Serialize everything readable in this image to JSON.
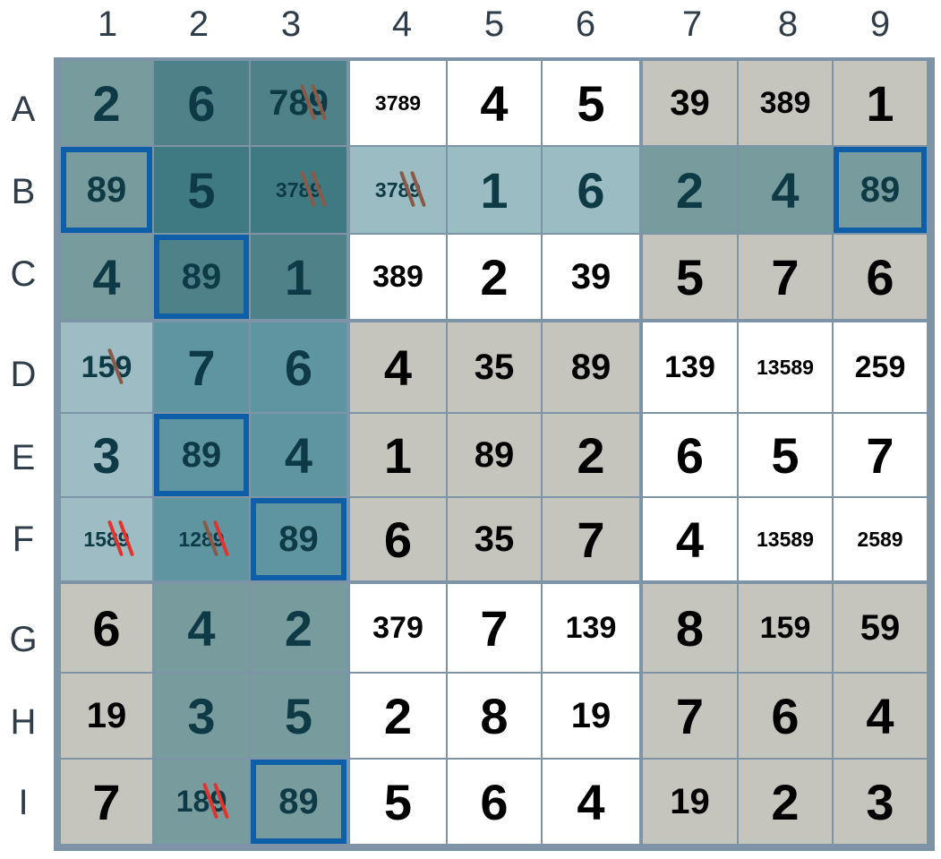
{
  "columns": [
    "1",
    "2",
    "3",
    "4",
    "5",
    "6",
    "7",
    "8",
    "9"
  ],
  "rows": [
    "A",
    "B",
    "C",
    "D",
    "E",
    "F",
    "G",
    "H",
    "I"
  ],
  "colors": {
    "white": "#ffffff",
    "gray": "#c5c5bd",
    "teal_dark": "#4f8288",
    "teal_mid": "#5e95a0",
    "teal_light": "#9dbcc4",
    "teal_gray": "#789b9d",
    "teal_strong": "#3f7a82",
    "row_light": "#9bbcc3",
    "outline_blue": "#0f5fa8",
    "strike_red": "#e0342c",
    "strike_brown": "#8a5a48"
  },
  "board": [
    [
      {
        "v": "2",
        "t": "given",
        "bg": "teal_gray"
      },
      {
        "v": "6",
        "t": "given",
        "bg": "teal_dark"
      },
      {
        "v": "789",
        "t": "cand",
        "bg": "teal_dark",
        "strikes": [
          {
            "color": "strike_brown",
            "n": 2
          }
        ]
      },
      {
        "v": "3789",
        "t": "cand",
        "bg": "white",
        "size": "micro"
      },
      {
        "v": "4",
        "t": "given",
        "bg": "white"
      },
      {
        "v": "5",
        "t": "given",
        "bg": "white"
      },
      {
        "v": "39",
        "t": "cand",
        "bg": "gray"
      },
      {
        "v": "389",
        "t": "cand",
        "bg": "gray",
        "size": "small"
      },
      {
        "v": "1",
        "t": "given",
        "bg": "gray"
      }
    ],
    [
      {
        "v": "89",
        "t": "cand",
        "bg": "teal_gray",
        "outlined": true
      },
      {
        "v": "5",
        "t": "given",
        "bg": "teal_strong"
      },
      {
        "v": "3789",
        "t": "cand",
        "bg": "teal_strong",
        "size": "micro",
        "strikes": [
          {
            "color": "strike_brown",
            "n": 2
          }
        ]
      },
      {
        "v": "3789",
        "t": "cand",
        "bg": "row_light",
        "size": "micro",
        "strikes": [
          {
            "color": "strike_brown",
            "n": 2
          }
        ]
      },
      {
        "v": "1",
        "t": "given",
        "bg": "row_light"
      },
      {
        "v": "6",
        "t": "given",
        "bg": "row_light"
      },
      {
        "v": "2",
        "t": "given",
        "bg": "teal_gray"
      },
      {
        "v": "4",
        "t": "given",
        "bg": "teal_gray"
      },
      {
        "v": "89",
        "t": "cand",
        "bg": "teal_gray",
        "outlined": true
      }
    ],
    [
      {
        "v": "4",
        "t": "given",
        "bg": "teal_gray"
      },
      {
        "v": "89",
        "t": "cand",
        "bg": "teal_dark",
        "outlined": true
      },
      {
        "v": "1",
        "t": "given",
        "bg": "teal_dark"
      },
      {
        "v": "389",
        "t": "cand",
        "bg": "white",
        "size": "small"
      },
      {
        "v": "2",
        "t": "given",
        "bg": "white"
      },
      {
        "v": "39",
        "t": "cand",
        "bg": "white"
      },
      {
        "v": "5",
        "t": "given",
        "bg": "gray"
      },
      {
        "v": "7",
        "t": "given",
        "bg": "gray"
      },
      {
        "v": "6",
        "t": "given",
        "bg": "gray"
      }
    ],
    [
      {
        "v": "159",
        "t": "cand",
        "bg": "teal_light",
        "size": "small",
        "strikes": [
          {
            "color": "strike_brown",
            "n": 1
          }
        ]
      },
      {
        "v": "7",
        "t": "given",
        "bg": "teal_mid"
      },
      {
        "v": "6",
        "t": "given",
        "bg": "teal_mid"
      },
      {
        "v": "4",
        "t": "given",
        "bg": "gray"
      },
      {
        "v": "35",
        "t": "cand",
        "bg": "gray"
      },
      {
        "v": "89",
        "t": "cand",
        "bg": "gray"
      },
      {
        "v": "139",
        "t": "cand",
        "bg": "white",
        "size": "small"
      },
      {
        "v": "13589",
        "t": "cand",
        "bg": "white",
        "size": "micro"
      },
      {
        "v": "259",
        "t": "cand",
        "bg": "white",
        "size": "small"
      }
    ],
    [
      {
        "v": "3",
        "t": "given",
        "bg": "teal_light"
      },
      {
        "v": "89",
        "t": "cand",
        "bg": "teal_mid",
        "outlined": true
      },
      {
        "v": "4",
        "t": "given",
        "bg": "teal_mid"
      },
      {
        "v": "1",
        "t": "given",
        "bg": "gray"
      },
      {
        "v": "89",
        "t": "cand",
        "bg": "gray"
      },
      {
        "v": "2",
        "t": "given",
        "bg": "gray"
      },
      {
        "v": "6",
        "t": "given",
        "bg": "white"
      },
      {
        "v": "5",
        "t": "given",
        "bg": "white"
      },
      {
        "v": "7",
        "t": "given",
        "bg": "white"
      }
    ],
    [
      {
        "v": "1589",
        "t": "cand",
        "bg": "teal_light",
        "size": "micro",
        "strikes": [
          {
            "color": "strike_red",
            "n": 2
          }
        ]
      },
      {
        "v": "1289",
        "t": "cand",
        "bg": "teal_mid",
        "size": "micro",
        "strikes": [
          {
            "color": "strike_brown",
            "n": 1
          },
          {
            "color": "strike_red",
            "n": 1
          }
        ]
      },
      {
        "v": "89",
        "t": "cand",
        "bg": "teal_mid",
        "outlined": true
      },
      {
        "v": "6",
        "t": "given",
        "bg": "gray"
      },
      {
        "v": "35",
        "t": "cand",
        "bg": "gray"
      },
      {
        "v": "7",
        "t": "given",
        "bg": "gray"
      },
      {
        "v": "4",
        "t": "given",
        "bg": "white"
      },
      {
        "v": "13589",
        "t": "cand",
        "bg": "white",
        "size": "micro"
      },
      {
        "v": "2589",
        "t": "cand",
        "bg": "white",
        "size": "micro"
      }
    ],
    [
      {
        "v": "6",
        "t": "given",
        "bg": "gray"
      },
      {
        "v": "4",
        "t": "given",
        "bg": "teal_gray"
      },
      {
        "v": "2",
        "t": "given",
        "bg": "teal_gray"
      },
      {
        "v": "379",
        "t": "cand",
        "bg": "white",
        "size": "small"
      },
      {
        "v": "7",
        "t": "given",
        "bg": "white"
      },
      {
        "v": "139",
        "t": "cand",
        "bg": "white",
        "size": "small"
      },
      {
        "v": "8",
        "t": "given",
        "bg": "gray"
      },
      {
        "v": "159",
        "t": "cand",
        "bg": "gray",
        "size": "small"
      },
      {
        "v": "59",
        "t": "cand",
        "bg": "gray"
      }
    ],
    [
      {
        "v": "19",
        "t": "cand",
        "bg": "gray"
      },
      {
        "v": "3",
        "t": "given",
        "bg": "teal_gray"
      },
      {
        "v": "5",
        "t": "given",
        "bg": "teal_gray"
      },
      {
        "v": "2",
        "t": "given",
        "bg": "white"
      },
      {
        "v": "8",
        "t": "given",
        "bg": "white"
      },
      {
        "v": "19",
        "t": "cand",
        "bg": "white"
      },
      {
        "v": "7",
        "t": "given",
        "bg": "gray"
      },
      {
        "v": "6",
        "t": "given",
        "bg": "gray"
      },
      {
        "v": "4",
        "t": "given",
        "bg": "gray"
      }
    ],
    [
      {
        "v": "7",
        "t": "given",
        "bg": "gray"
      },
      {
        "v": "189",
        "t": "cand",
        "bg": "teal_gray",
        "size": "small",
        "strikes": [
          {
            "color": "strike_red",
            "n": 2
          }
        ]
      },
      {
        "v": "89",
        "t": "cand",
        "bg": "teal_gray",
        "outlined": true
      },
      {
        "v": "5",
        "t": "given",
        "bg": "white"
      },
      {
        "v": "6",
        "t": "given",
        "bg": "white"
      },
      {
        "v": "4",
        "t": "given",
        "bg": "white"
      },
      {
        "v": "19",
        "t": "cand",
        "bg": "gray"
      },
      {
        "v": "2",
        "t": "given",
        "bg": "gray"
      },
      {
        "v": "3",
        "t": "given",
        "bg": "gray"
      }
    ]
  ]
}
